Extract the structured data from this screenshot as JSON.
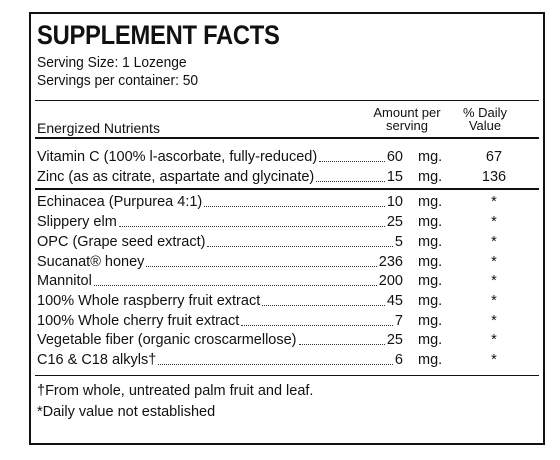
{
  "title": "SUPPLEMENT FACTS",
  "serving_size": "Serving Size: 1 Lozenge",
  "servings_per_container": "Servings per container: 50",
  "table": {
    "headers": [
      "Energized Nutrients",
      "Amount per serving",
      "% Daily Value"
    ],
    "groups": [
      {
        "rows": [
          {
            "name": "Vitamin C (100% l-ascorbate, fully-reduced)",
            "amount": 60,
            "unit": "mg.",
            "dv": 67
          },
          {
            "name": "Zinc (as as citrate, aspartate and glycinate)",
            "amount": 15,
            "unit": "mg.",
            "dv": 136
          }
        ]
      },
      {
        "rows": [
          {
            "name": "Echinacea (Purpurea 4:1)",
            "amount": 10,
            "unit": "mg.",
            "dv": "*"
          },
          {
            "name": "Slippery elm",
            "amount": 25,
            "unit": "mg.",
            "dv": "*"
          },
          {
            "name": "OPC (Grape seed extract)",
            "amount": 5,
            "unit": "mg.",
            "dv": "*"
          },
          {
            "name": "Sucanat® honey",
            "amount": 236,
            "unit": "mg.",
            "dv": "*"
          },
          {
            "name": "Mannitol",
            "amount": 200,
            "unit": "mg.",
            "dv": "*"
          },
          {
            "name": "100% Whole raspberry fruit extract",
            "amount": 45,
            "unit": "mg.",
            "dv": "*"
          },
          {
            "name": "100% Whole cherry fruit extract",
            "amount": 7,
            "unit": "mg.",
            "dv": "*"
          },
          {
            "name": "Vegetable fiber (organic croscarmellose)",
            "amount": 25,
            "unit": "mg.",
            "dv": "*"
          },
          {
            "name": "C16 & C18 alkyls†",
            "amount": 6,
            "unit": "mg.",
            "dv": "*"
          }
        ]
      }
    ]
  },
  "footnotes": [
    "†From whole, untreated palm fruit and leaf.",
    "*Daily value not established"
  ]
}
